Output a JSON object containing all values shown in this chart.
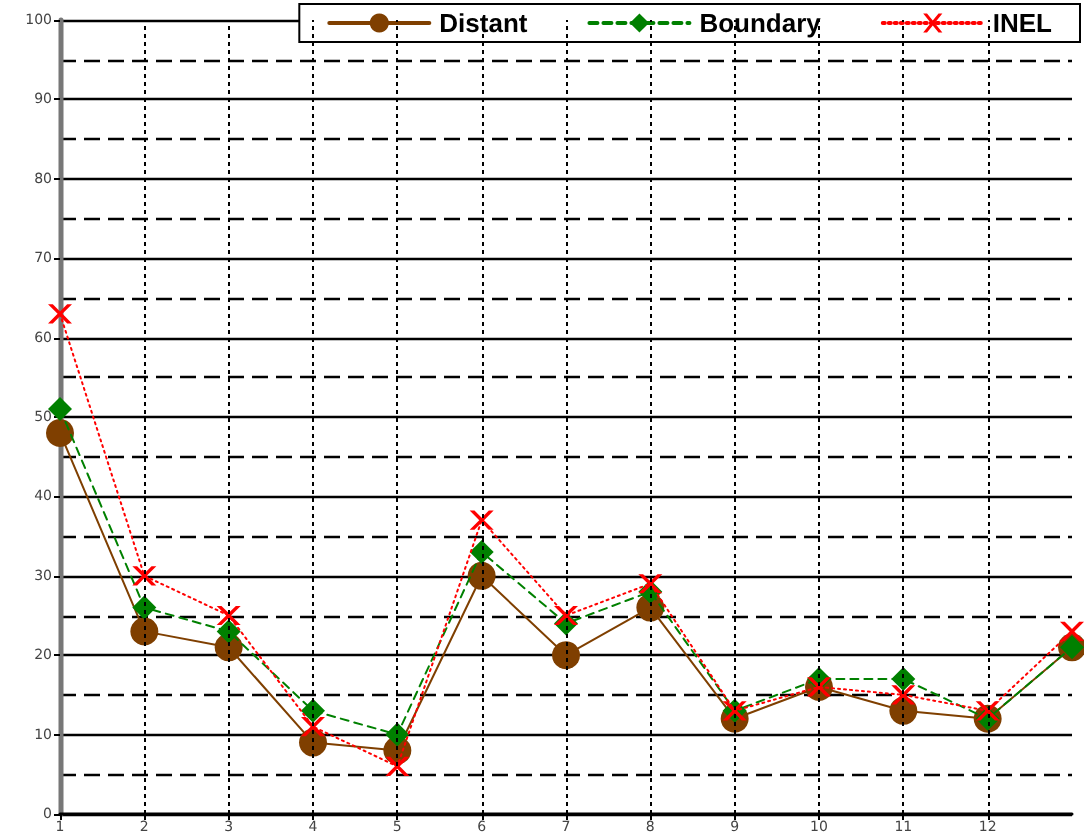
{
  "chart_data": {
    "type": "line",
    "x": [
      1,
      2,
      3,
      4,
      5,
      6,
      7,
      8,
      9,
      10,
      11,
      12,
      13
    ],
    "series": [
      {
        "name": "Distant",
        "color": "#7f3f00",
        "marker": "circle",
        "line_style": "solid",
        "values": [
          48,
          23,
          21,
          9,
          8,
          30,
          20,
          26,
          12,
          16,
          13,
          12,
          21
        ]
      },
      {
        "name": "Boundary",
        "color": "#008000",
        "marker": "diamond",
        "line_style": "dashed",
        "values": [
          51,
          26,
          23,
          13,
          10,
          33,
          24,
          28,
          13,
          17,
          17,
          12,
          21
        ]
      },
      {
        "name": "INEL",
        "color": "#ff0000",
        "marker": "cross",
        "line_style": "dotted",
        "values": [
          63,
          30,
          25,
          11,
          6,
          37,
          25,
          29,
          13,
          16,
          15,
          13,
          23
        ]
      }
    ],
    "xlim": [
      1,
      13
    ],
    "xticks": [
      1,
      2,
      3,
      4,
      5,
      6,
      7,
      8,
      9,
      10,
      11,
      12
    ],
    "ylim": [
      0,
      100
    ],
    "yticks": [
      0,
      10,
      20,
      30,
      40,
      50,
      60,
      70,
      80,
      90,
      100
    ],
    "grid": true,
    "legend": "top right"
  }
}
